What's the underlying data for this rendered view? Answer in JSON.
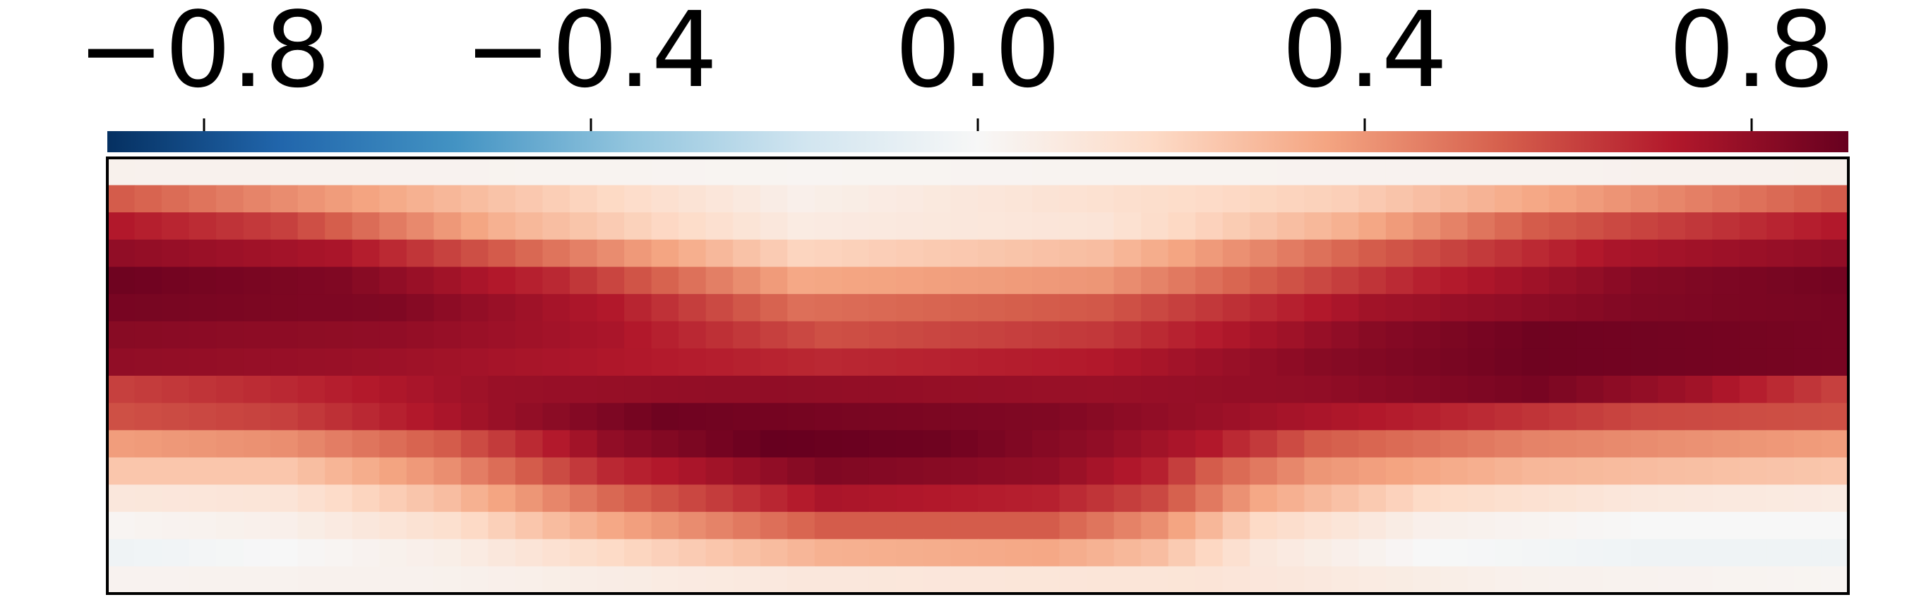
{
  "chart_data": {
    "type": "heatmap",
    "title": "",
    "xlabel": "",
    "ylabel": "",
    "colormap": "RdBu_r",
    "vmin": -0.9,
    "vmax": 0.9,
    "colorbar": {
      "placement": "top",
      "ticks": [
        -0.8,
        -0.4,
        0.0,
        0.4,
        0.8
      ],
      "tick_labels": [
        "−0.8",
        "−0.4",
        "0.0",
        "0.4",
        "0.8"
      ]
    },
    "n_cols": 64,
    "n_rows": 16,
    "x_ticks": [],
    "y_ticks": [],
    "row_profiles": [
      {
        "row": 0,
        "x": [
          0,
          12,
          25,
          45,
          63
        ],
        "value": [
          0.04,
          0.03,
          0.02,
          0.03,
          0.04
        ]
      },
      {
        "row": 1,
        "x": [
          0,
          12,
          25,
          45,
          63
        ],
        "value": [
          0.55,
          0.3,
          0.05,
          0.22,
          0.55
        ]
      },
      {
        "row": 2,
        "x": [
          0,
          6,
          14,
          25,
          36,
          45,
          52,
          63
        ],
        "value": [
          0.72,
          0.62,
          0.32,
          0.08,
          0.12,
          0.32,
          0.55,
          0.72
        ]
      },
      {
        "row": 3,
        "x": [
          0,
          8,
          15,
          25,
          36,
          46,
          55,
          63
        ],
        "value": [
          0.8,
          0.74,
          0.52,
          0.2,
          0.28,
          0.55,
          0.74,
          0.8
        ]
      },
      {
        "row": 4,
        "x": [
          0,
          8,
          16,
          25,
          36,
          48,
          56,
          63
        ],
        "value": [
          0.88,
          0.84,
          0.68,
          0.35,
          0.4,
          0.7,
          0.83,
          0.87
        ]
      },
      {
        "row": 5,
        "x": [
          0,
          10,
          18,
          25,
          36,
          46,
          56,
          63
        ],
        "value": [
          0.86,
          0.84,
          0.72,
          0.5,
          0.56,
          0.76,
          0.84,
          0.86
        ]
      },
      {
        "row": 6,
        "x": [
          0,
          10,
          18,
          26,
          36,
          46,
          52,
          63
        ],
        "value": [
          0.82,
          0.8,
          0.74,
          0.58,
          0.64,
          0.82,
          0.88,
          0.86
        ]
      },
      {
        "row": 7,
        "x": [
          0,
          8,
          16,
          26,
          36,
          44,
          52,
          63
        ],
        "value": [
          0.8,
          0.78,
          0.74,
          0.68,
          0.72,
          0.82,
          0.88,
          0.86
        ]
      },
      {
        "row": 8,
        "x": [
          0,
          6,
          14,
          24,
          36,
          44,
          52,
          58,
          63
        ],
        "value": [
          0.62,
          0.68,
          0.78,
          0.8,
          0.78,
          0.8,
          0.86,
          0.76,
          0.62
        ]
      },
      {
        "row": 9,
        "x": [
          0,
          6,
          14,
          20,
          26,
          34,
          40,
          48,
          56,
          63
        ],
        "value": [
          0.58,
          0.62,
          0.78,
          0.88,
          0.86,
          0.84,
          0.78,
          0.7,
          0.6,
          0.58
        ]
      },
      {
        "row": 10,
        "x": [
          0,
          6,
          12,
          18,
          24,
          30,
          36,
          40,
          44,
          52,
          63
        ],
        "value": [
          0.38,
          0.42,
          0.55,
          0.8,
          0.9,
          0.88,
          0.8,
          0.72,
          0.55,
          0.45,
          0.38
        ]
      },
      {
        "row": 11,
        "x": [
          0,
          6,
          12,
          18,
          26,
          34,
          38,
          40,
          44,
          52,
          63
        ],
        "value": [
          0.25,
          0.25,
          0.42,
          0.68,
          0.84,
          0.8,
          0.7,
          0.55,
          0.4,
          0.3,
          0.25
        ]
      },
      {
        "row": 12,
        "x": [
          0,
          6,
          12,
          18,
          26,
          34,
          38,
          42,
          48,
          56,
          63
        ],
        "value": [
          0.1,
          0.12,
          0.28,
          0.52,
          0.74,
          0.7,
          0.6,
          0.35,
          0.18,
          0.1,
          0.08
        ]
      },
      {
        "row": 13,
        "x": [
          0,
          6,
          12,
          18,
          26,
          34,
          38,
          42,
          48,
          56,
          63
        ],
        "value": [
          0.02,
          0.05,
          0.15,
          0.35,
          0.55,
          0.55,
          0.42,
          0.18,
          0.05,
          0.0,
          0.0
        ]
      },
      {
        "row": 14,
        "x": [
          0,
          6,
          12,
          18,
          26,
          34,
          38,
          42,
          48,
          56,
          63
        ],
        "value": [
          -0.04,
          0.0,
          0.06,
          0.18,
          0.32,
          0.35,
          0.28,
          0.1,
          0.0,
          -0.04,
          -0.04
        ]
      },
      {
        "row": 15,
        "x": [
          0,
          12,
          25,
          40,
          52,
          63
        ],
        "value": [
          0.03,
          0.04,
          0.1,
          0.12,
          0.04,
          0.02
        ]
      }
    ]
  }
}
